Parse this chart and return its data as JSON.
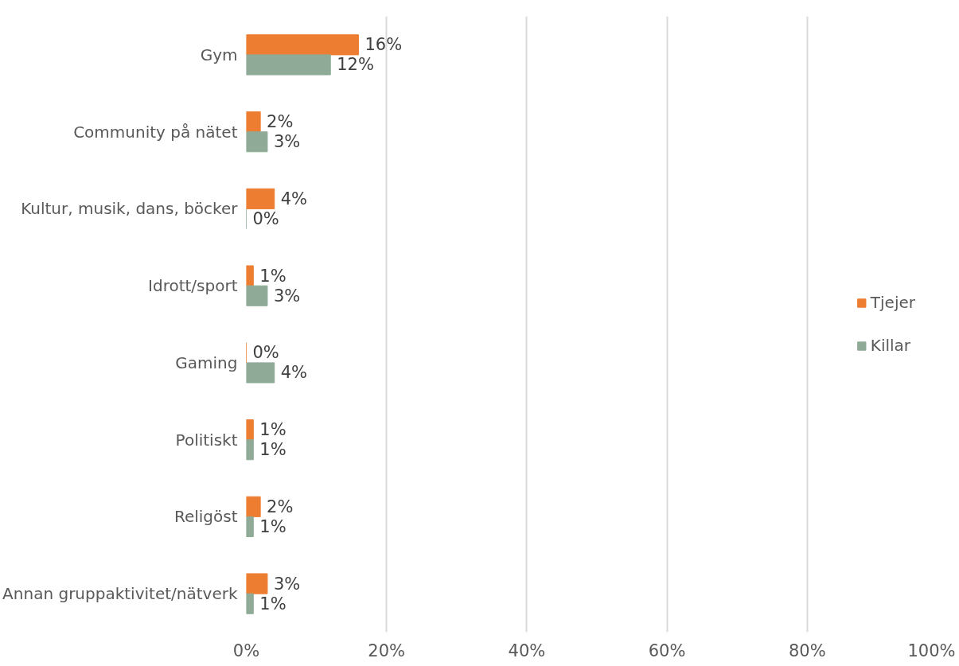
{
  "chart_data": {
    "type": "bar",
    "orientation": "horizontal",
    "categories": [
      "Gym",
      "Community på nätet",
      "Kultur, musik, dans, böcker",
      "Idrott/sport",
      "Gaming",
      "Politiskt",
      "Religöst",
      "Annan gruppaktivitet/nätverk"
    ],
    "series": [
      {
        "name": "Tjejer",
        "color": "#ed7d31",
        "values": [
          16,
          2,
          4,
          1,
          0,
          1,
          2,
          3
        ],
        "value_labels": [
          "16%",
          "2%",
          "4%",
          "1%",
          "0%",
          "1%",
          "2%",
          "3%"
        ]
      },
      {
        "name": "Killar",
        "color": "#8fab98",
        "values": [
          12,
          3,
          0,
          3,
          4,
          1,
          1,
          1
        ],
        "value_labels": [
          "12%",
          "3%",
          "0%",
          "3%",
          "4%",
          "1%",
          "1%",
          "1%"
        ]
      }
    ],
    "xlim": [
      0,
      100
    ],
    "xticks": [
      {
        "value": 0,
        "label": "0%"
      },
      {
        "value": 20,
        "label": "20%"
      },
      {
        "value": 40,
        "label": "40%"
      },
      {
        "value": 60,
        "label": "60%"
      },
      {
        "value": 80,
        "label": "80%"
      },
      {
        "value": 100,
        "label": "100%"
      }
    ],
    "grid": "x",
    "legend": "right"
  }
}
